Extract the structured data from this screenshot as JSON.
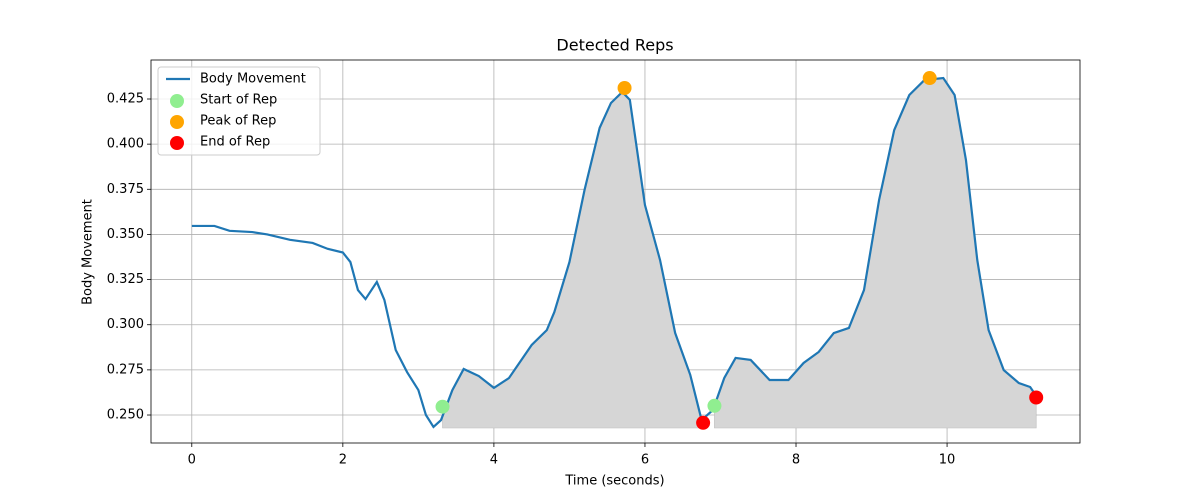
{
  "chart_data": {
    "type": "line",
    "title": "Detected Reps",
    "xlabel": "Time (seconds)",
    "ylabel": "Body Movement",
    "xlim": [
      -0.54,
      11.76
    ],
    "ylim": [
      0.2345,
      0.4466
    ],
    "xticks": [
      0,
      2,
      4,
      6,
      8,
      10
    ],
    "yticks": [
      {
        "value": 0.25,
        "label": "0.250"
      },
      0.275,
      {
        "value": 0.3,
        "label": "0.300"
      },
      0.325,
      {
        "value": 0.35,
        "label": "0.350"
      },
      0.375,
      {
        "value": 0.4,
        "label": "0.400"
      },
      0.425
    ],
    "grid": true,
    "legend": "upper left",
    "shade_color": "#d6d6d6",
    "shade_floor": 0.2428,
    "series": [
      {
        "name": "Body Movement",
        "type": "line",
        "color": "#1f77b4",
        "x": [
          0,
          0.3,
          0.5,
          0.8,
          1.0,
          1.3,
          1.6,
          1.8,
          2.0,
          2.1,
          2.2,
          2.3,
          2.45,
          2.55,
          2.7,
          2.85,
          3.0,
          3.1,
          3.2,
          3.3,
          3.45,
          3.6,
          3.8,
          4.0,
          4.2,
          4.5,
          4.7,
          4.8,
          5.0,
          5.2,
          5.4,
          5.55,
          5.7,
          5.8,
          6.0,
          6.2,
          6.4,
          6.6,
          6.75,
          6.9,
          7.05,
          7.2,
          7.4,
          7.65,
          7.9,
          8.1,
          8.3,
          8.5,
          8.7,
          8.9,
          9.1,
          9.3,
          9.5,
          9.7,
          9.95,
          10.1,
          10.25,
          10.4,
          10.55,
          10.75,
          10.95,
          11.1,
          11.2
        ],
        "values": [
          0.3547,
          0.3547,
          0.352,
          0.3513,
          0.35,
          0.347,
          0.3453,
          0.342,
          0.34,
          0.3347,
          0.3192,
          0.3142,
          0.3237,
          0.3137,
          0.286,
          0.2738,
          0.2638,
          0.25,
          0.2434,
          0.2472,
          0.2638,
          0.2755,
          0.2716,
          0.265,
          0.2705,
          0.2888,
          0.297,
          0.307,
          0.3347,
          0.3746,
          0.409,
          0.4228,
          0.4289,
          0.4245,
          0.3663,
          0.3358,
          0.2954,
          0.2722,
          0.2472,
          0.2528,
          0.2705,
          0.2816,
          0.2805,
          0.2694,
          0.2694,
          0.2788,
          0.2849,
          0.2954,
          0.2982,
          0.3192,
          0.3691,
          0.4078,
          0.4272,
          0.4355,
          0.4366,
          0.4272,
          0.3912,
          0.3358,
          0.297,
          0.2749,
          0.2677,
          0.2655,
          0.2594
        ]
      },
      {
        "name": "Start of Rep",
        "type": "scatter",
        "color": "#90ee90",
        "x": [
          3.32,
          6.92
        ],
        "values": [
          0.2546,
          0.2551
        ]
      },
      {
        "name": "Peak of Rep",
        "type": "scatter",
        "color": "#ffa500",
        "x": [
          5.73,
          9.77
        ],
        "values": [
          0.4311,
          0.4366
        ]
      },
      {
        "name": "End of Rep",
        "type": "scatter",
        "color": "#ff0000",
        "x": [
          6.77,
          11.18
        ],
        "values": [
          0.2457,
          0.2597
        ]
      }
    ]
  }
}
